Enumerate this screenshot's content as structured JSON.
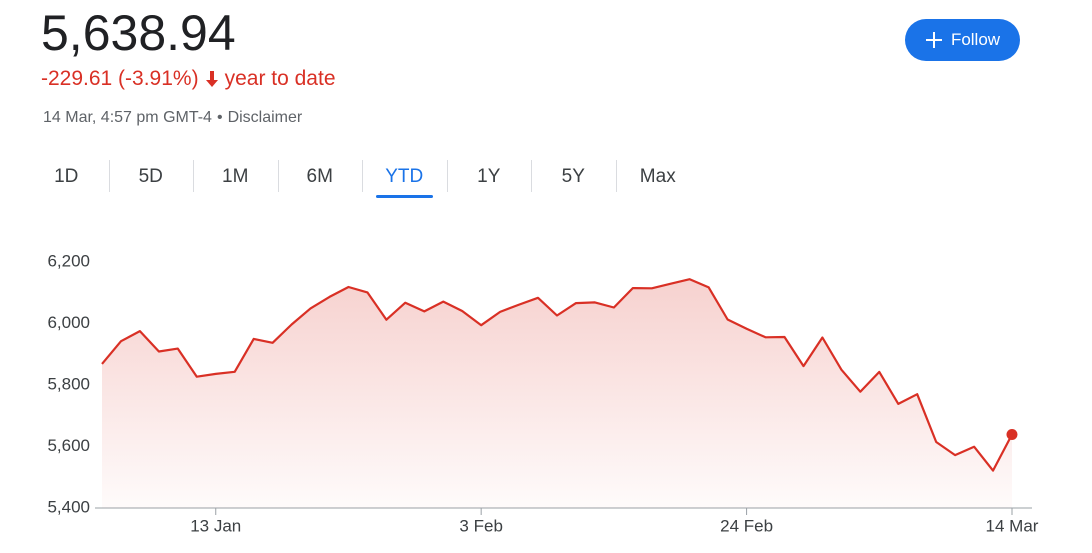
{
  "header": {
    "price": "5,638.94",
    "change": "-229.61 (-3.91%)",
    "period": "year to date",
    "timestamp": "14 Mar, 4:57 pm GMT-4",
    "separator": "•",
    "disclaimer": "Disclaimer",
    "follow": "Follow"
  },
  "tabs": [
    "1D",
    "5D",
    "1M",
    "6M",
    "YTD",
    "1Y",
    "5Y",
    "Max"
  ],
  "selected_tab": 4,
  "chart_data": {
    "type": "line",
    "color": "#d93025",
    "area": true,
    "grid": false,
    "categories": [
      null,
      null,
      null,
      null,
      null,
      null,
      "13 Jan",
      null,
      null,
      null,
      null,
      null,
      null,
      null,
      null,
      null,
      null,
      null,
      null,
      null,
      "3 Feb",
      null,
      null,
      null,
      null,
      null,
      null,
      null,
      null,
      null,
      null,
      null,
      null,
      null,
      "24 Feb",
      null,
      null,
      null,
      null,
      null,
      null,
      null,
      null,
      null,
      null,
      null,
      null,
      null,
      "14 Mar"
    ],
    "values": [
      5868.55,
      5942.47,
      5975.38,
      5909.03,
      5918.25,
      5827.04,
      5836.22,
      5842.91,
      5949.91,
      5937.34,
      5996.66,
      6049.24,
      6086.37,
      6118.71,
      6101.24,
      6012.28,
      6067.7,
      6039.31,
      6071.17,
      6040.53,
      5994.57,
      6037.88,
      6061.48,
      6083.57,
      6025.99,
      6066.44,
      6068.5,
      6051.97,
      6115.07,
      6114.63,
      6129.58,
      6144.15,
      6117.52,
      6013.13,
      5983.25,
      5955.25,
      5956.06,
      5861.57,
      5954.5,
      5849.72,
      5778.15,
      5842.63,
      5738.52,
      5770.2,
      5614.56,
      5572.07,
      5599.3,
      5521.52,
      5638.94
    ],
    "ylim": [
      5400,
      6200
    ],
    "yticks": [
      {
        "value": 5400,
        "label": "5,400"
      },
      {
        "value": 5600,
        "label": "5,600"
      },
      {
        "value": 5800,
        "label": "5,800"
      },
      {
        "value": 6000,
        "label": "6,000"
      },
      {
        "value": 6200,
        "label": "6,200"
      }
    ]
  }
}
